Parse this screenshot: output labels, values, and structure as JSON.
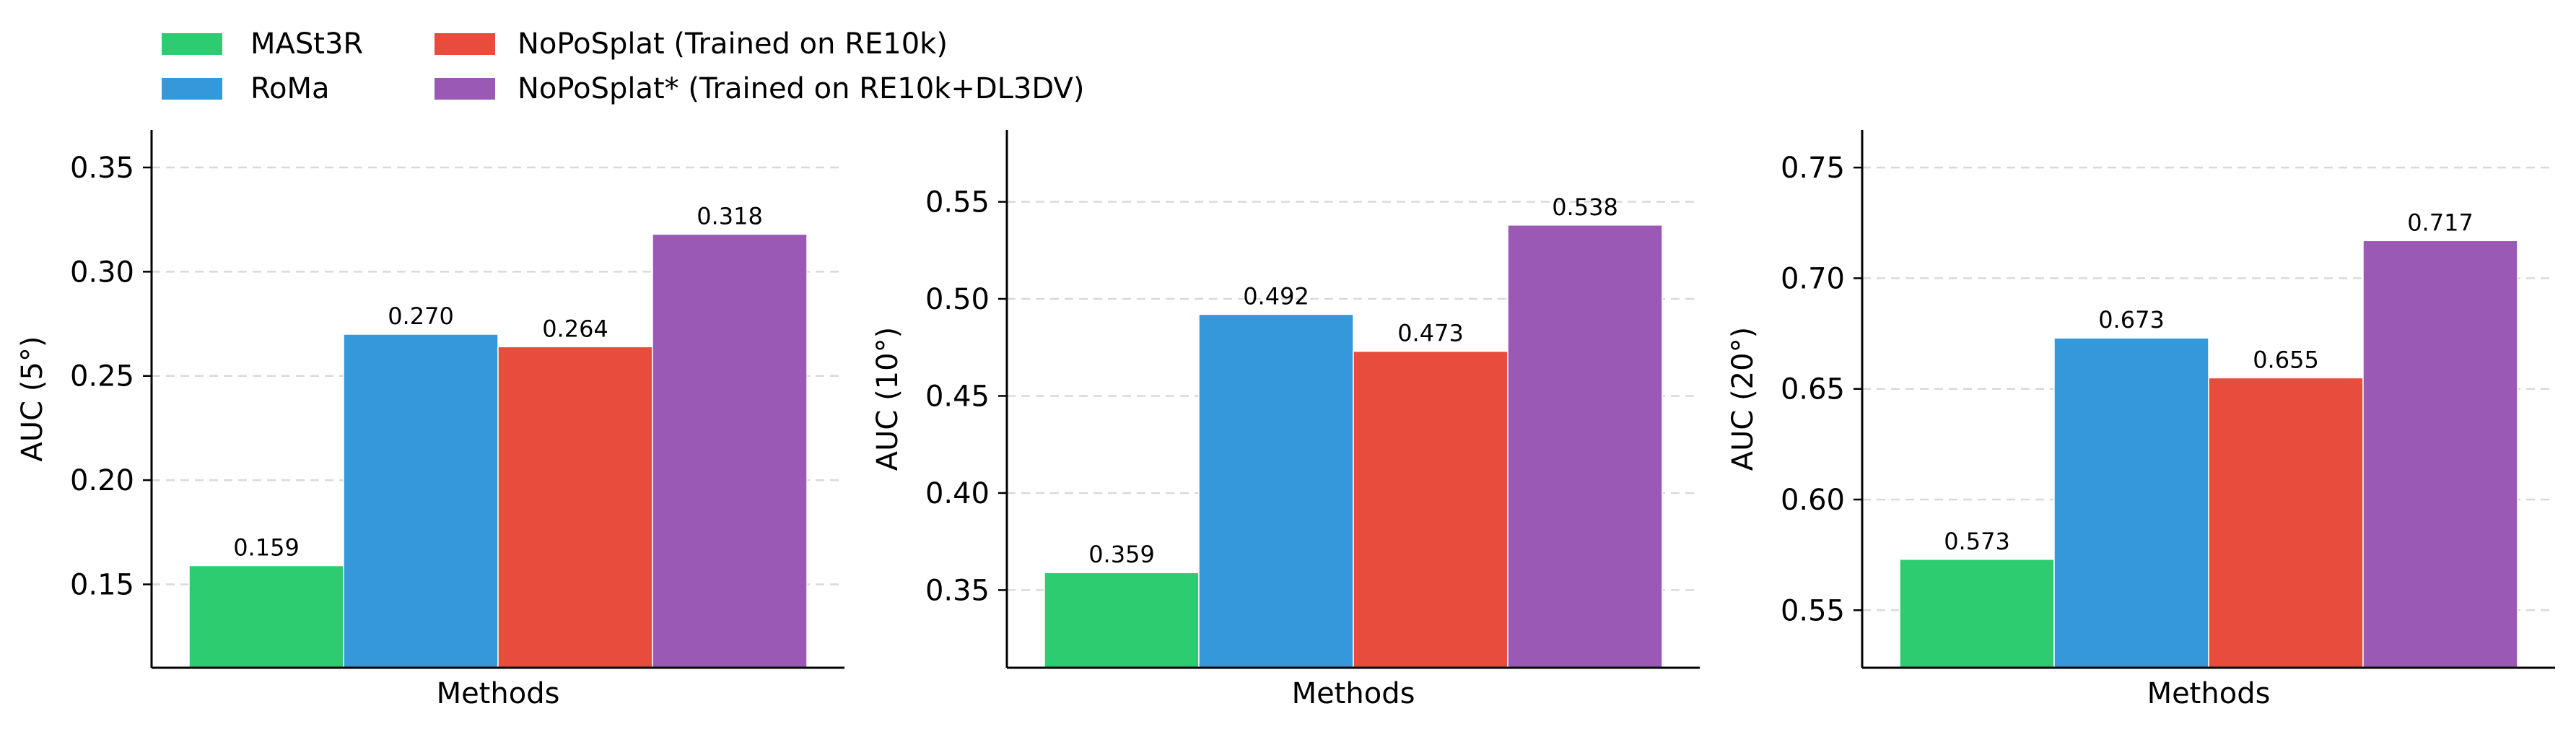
{
  "legend": {
    "placement": "top-left, above plots",
    "entries": [
      {
        "label": "MASt3R",
        "color": "#2ecc71"
      },
      {
        "label": "RoMa",
        "color": "#3498db"
      },
      {
        "label": "NoPoSplat (Trained on RE10k)",
        "color": "#e74c3c"
      },
      {
        "label": "NoPoSplat* (Trained on RE10k+DL3DV)",
        "color": "#9b59b6"
      }
    ]
  },
  "chart_data": [
    {
      "type": "bar",
      "title": "",
      "xlabel": "Methods",
      "ylabel": "AUC (5°)",
      "ylim": [
        0.11,
        0.368
      ],
      "yticks": [
        0.15,
        0.2,
        0.25,
        0.3,
        0.35
      ],
      "ytick_labels": [
        "0.15",
        "0.20",
        "0.25",
        "0.30",
        "0.35"
      ],
      "grid": "horizontal dashed",
      "series": [
        {
          "name": "MASt3R",
          "value": 0.159,
          "label": "0.159",
          "color": "#2ecc71"
        },
        {
          "name": "RoMa",
          "value": 0.27,
          "label": "0.270",
          "color": "#3498db"
        },
        {
          "name": "NoPoSplat (Trained on RE10k)",
          "value": 0.264,
          "label": "0.264",
          "color": "#e74c3c"
        },
        {
          "name": "NoPoSplat* (Trained on RE10k+DL3DV)",
          "value": 0.318,
          "label": "0.318",
          "color": "#9b59b6"
        }
      ]
    },
    {
      "type": "bar",
      "title": "",
      "xlabel": "Methods",
      "ylabel": "AUC (10°)",
      "ylim": [
        0.31,
        0.587
      ],
      "yticks": [
        0.35,
        0.4,
        0.45,
        0.5,
        0.55
      ],
      "ytick_labels": [
        "0.35",
        "0.40",
        "0.45",
        "0.50",
        "0.55"
      ],
      "grid": "horizontal dashed",
      "series": [
        {
          "name": "MASt3R",
          "value": 0.359,
          "label": "0.359",
          "color": "#2ecc71"
        },
        {
          "name": "RoMa",
          "value": 0.492,
          "label": "0.492",
          "color": "#3498db"
        },
        {
          "name": "NoPoSplat (Trained on RE10k)",
          "value": 0.473,
          "label": "0.473",
          "color": "#e74c3c"
        },
        {
          "name": "NoPoSplat* (Trained on RE10k+DL3DV)",
          "value": 0.538,
          "label": "0.538",
          "color": "#9b59b6"
        }
      ]
    },
    {
      "type": "bar",
      "title": "",
      "xlabel": "Methods",
      "ylabel": "AUC (20°)",
      "ylim": [
        0.524,
        0.767
      ],
      "yticks": [
        0.55,
        0.6,
        0.65,
        0.7,
        0.75
      ],
      "ytick_labels": [
        "0.55",
        "0.60",
        "0.65",
        "0.70",
        "0.75"
      ],
      "grid": "horizontal dashed",
      "series": [
        {
          "name": "MASt3R",
          "value": 0.573,
          "label": "0.573",
          "color": "#2ecc71"
        },
        {
          "name": "RoMa",
          "value": 0.673,
          "label": "0.673",
          "color": "#3498db"
        },
        {
          "name": "NoPoSplat (Trained on RE10k)",
          "value": 0.655,
          "label": "0.655",
          "color": "#e74c3c"
        },
        {
          "name": "NoPoSplat* (Trained on RE10k+DL3DV)",
          "value": 0.717,
          "label": "0.717",
          "color": "#9b59b6"
        }
      ]
    }
  ]
}
